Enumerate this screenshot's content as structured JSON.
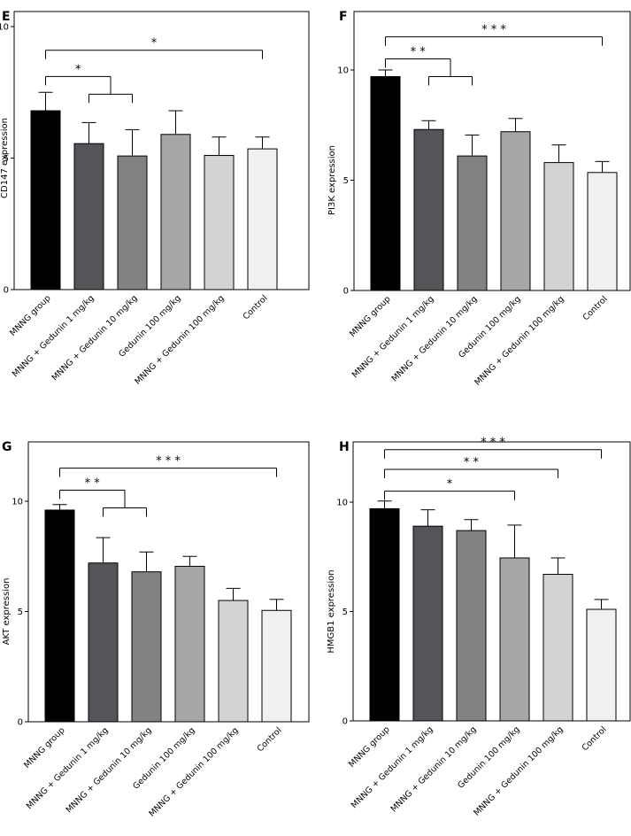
{
  "categories": [
    "MNNG group",
    "MNNG + Gedunin 1 mg/kg",
    "MNNG + Gedunin 10 mg/kg",
    "Gedunin 100 mg/kg",
    "MNNG + Gedunin 100 mg/kg",
    "Control"
  ],
  "colors": [
    "#000000",
    "#555559",
    "#828285",
    "#a6a6a8",
    "#d3d3d5",
    "#f0f0f0"
  ],
  "chart_data": [
    {
      "type": "bar",
      "panel": "E",
      "ylabel": "CD147 expression",
      "ylim": [
        0,
        10
      ],
      "yticks": [
        0,
        5,
        10
      ],
      "values": [
        6.8,
        5.55,
        5.08,
        5.9,
        5.1,
        5.35
      ],
      "errors": [
        0.7,
        0.8,
        1.0,
        0.9,
        0.7,
        0.45
      ],
      "significance": [
        {
          "label": "*",
          "from": 0,
          "to": 5,
          "y": 9.1
        },
        {
          "label": "*",
          "from": 0,
          "to": [
            1,
            2
          ],
          "y": 8.1
        }
      ]
    },
    {
      "type": "bar",
      "panel": "F",
      "ylabel": "PI3K expression",
      "ylim": [
        0,
        10
      ],
      "yticks": [
        0,
        5,
        10
      ],
      "values": [
        9.7,
        7.3,
        6.1,
        7.2,
        5.8,
        5.35
      ],
      "errors": [
        0.3,
        0.4,
        0.95,
        0.6,
        0.8,
        0.5
      ],
      "significance": [
        {
          "label": "* * *",
          "from": 0,
          "to": 5,
          "y": 11.5
        },
        {
          "label": "* *",
          "from": 0,
          "to": [
            1,
            2
          ],
          "y": 10.5
        }
      ]
    },
    {
      "type": "bar",
      "panel": "G",
      "ylabel": "AKT expression",
      "ylim": [
        0,
        10
      ],
      "yticks": [
        0,
        5,
        10
      ],
      "values": [
        9.6,
        7.2,
        6.8,
        7.05,
        5.5,
        5.05
      ],
      "errors": [
        0.25,
        1.15,
        0.9,
        0.45,
        0.55,
        0.5
      ],
      "significance": [
        {
          "label": "* * *",
          "from": 0,
          "to": 5,
          "y": 11.5
        },
        {
          "label": "* *",
          "from": 0,
          "to": [
            1,
            2
          ],
          "y": 10.5
        }
      ]
    },
    {
      "type": "bar",
      "panel": "H",
      "ylabel": "HMGB1 expression",
      "ylim": [
        0,
        10
      ],
      "yticks": [
        0,
        5,
        10
      ],
      "values": [
        9.7,
        8.9,
        8.7,
        7.45,
        6.7,
        5.1
      ],
      "errors": [
        0.35,
        0.75,
        0.5,
        1.5,
        0.75,
        0.45
      ],
      "significance": [
        {
          "label": "* * *",
          "from": 0,
          "to": 5,
          "y": 12.4
        },
        {
          "label": "* *",
          "from": 0,
          "to": 4,
          "y": 11.5
        },
        {
          "label": "*",
          "from": 0,
          "to": 3,
          "y": 10.5
        }
      ]
    }
  ]
}
